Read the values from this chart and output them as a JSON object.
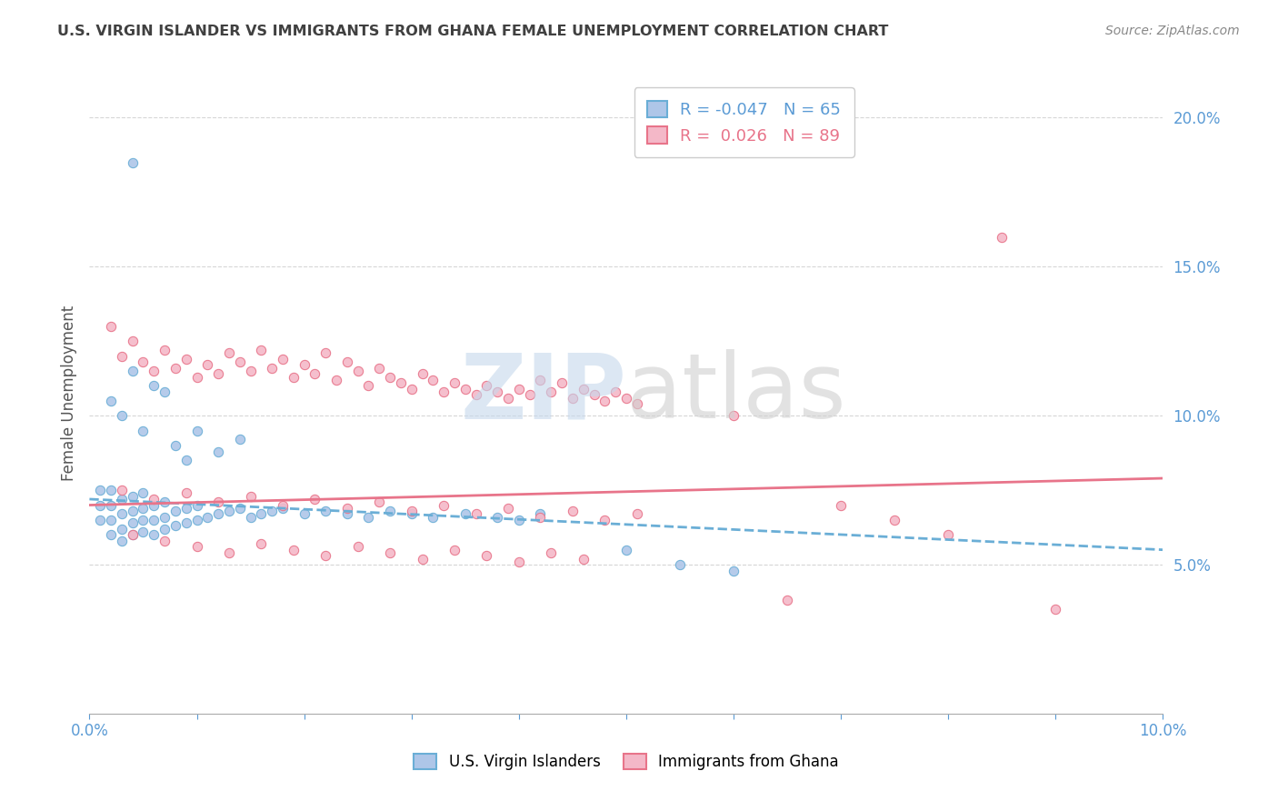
{
  "title": "U.S. VIRGIN ISLANDER VS IMMIGRANTS FROM GHANA FEMALE UNEMPLOYMENT CORRELATION CHART",
  "source": "Source: ZipAtlas.com",
  "ylabel": "Female Unemployment",
  "series1_name": "U.S. Virgin Islanders",
  "series1_color": "#aec6e8",
  "series1_edge_color": "#6aaed6",
  "series1_line_color": "#6aaed6",
  "series2_name": "Immigrants from Ghana",
  "series2_color": "#f4b8c8",
  "series2_edge_color": "#e8748a",
  "series2_line_color": "#e8748a",
  "R1": -0.047,
  "N1": 65,
  "R2": 0.026,
  "N2": 89,
  "bg_color": "#ffffff",
  "grid_color": "#cccccc",
  "tick_color": "#5b9bd5",
  "title_color": "#404040",
  "legend_R1_color": "#5b9bd5",
  "legend_R2_color": "#e8748a",
  "xmin": 0.0,
  "xmax": 0.1,
  "ymin": 0.0,
  "ymax": 0.215,
  "yticks": [
    0.05,
    0.1,
    0.15,
    0.2
  ],
  "scatter1_x": [
    0.001,
    0.001,
    0.001,
    0.002,
    0.002,
    0.002,
    0.002,
    0.003,
    0.003,
    0.003,
    0.003,
    0.004,
    0.004,
    0.004,
    0.004,
    0.005,
    0.005,
    0.005,
    0.005,
    0.006,
    0.006,
    0.006,
    0.007,
    0.007,
    0.007,
    0.008,
    0.008,
    0.009,
    0.009,
    0.01,
    0.01,
    0.011,
    0.012,
    0.013,
    0.014,
    0.015,
    0.016,
    0.017,
    0.018,
    0.02,
    0.022,
    0.024,
    0.026,
    0.028,
    0.03,
    0.032,
    0.035,
    0.038,
    0.04,
    0.042,
    0.002,
    0.003,
    0.004,
    0.005,
    0.006,
    0.007,
    0.008,
    0.009,
    0.01,
    0.012,
    0.014,
    0.004,
    0.05,
    0.055,
    0.06
  ],
  "scatter1_y": [
    0.065,
    0.07,
    0.075,
    0.06,
    0.065,
    0.07,
    0.075,
    0.058,
    0.062,
    0.067,
    0.072,
    0.06,
    0.064,
    0.068,
    0.073,
    0.061,
    0.065,
    0.069,
    0.074,
    0.06,
    0.065,
    0.07,
    0.062,
    0.066,
    0.071,
    0.063,
    0.068,
    0.064,
    0.069,
    0.065,
    0.07,
    0.066,
    0.067,
    0.068,
    0.069,
    0.066,
    0.067,
    0.068,
    0.069,
    0.067,
    0.068,
    0.067,
    0.066,
    0.068,
    0.067,
    0.066,
    0.067,
    0.066,
    0.065,
    0.067,
    0.105,
    0.1,
    0.115,
    0.095,
    0.11,
    0.108,
    0.09,
    0.085,
    0.095,
    0.088,
    0.092,
    0.185,
    0.055,
    0.05,
    0.048
  ],
  "scatter2_x": [
    0.002,
    0.003,
    0.004,
    0.005,
    0.006,
    0.007,
    0.008,
    0.009,
    0.01,
    0.011,
    0.012,
    0.013,
    0.014,
    0.015,
    0.016,
    0.017,
    0.018,
    0.019,
    0.02,
    0.021,
    0.022,
    0.023,
    0.024,
    0.025,
    0.026,
    0.027,
    0.028,
    0.029,
    0.03,
    0.031,
    0.032,
    0.033,
    0.034,
    0.035,
    0.036,
    0.037,
    0.038,
    0.039,
    0.04,
    0.041,
    0.042,
    0.043,
    0.044,
    0.045,
    0.046,
    0.047,
    0.048,
    0.049,
    0.05,
    0.051,
    0.003,
    0.006,
    0.009,
    0.012,
    0.015,
    0.018,
    0.021,
    0.024,
    0.027,
    0.03,
    0.033,
    0.036,
    0.039,
    0.042,
    0.045,
    0.048,
    0.051,
    0.06,
    0.065,
    0.07,
    0.075,
    0.08,
    0.085,
    0.09,
    0.004,
    0.007,
    0.01,
    0.013,
    0.016,
    0.019,
    0.022,
    0.025,
    0.028,
    0.031,
    0.034,
    0.037,
    0.04,
    0.043,
    0.046
  ],
  "scatter2_y": [
    0.13,
    0.12,
    0.125,
    0.118,
    0.115,
    0.122,
    0.116,
    0.119,
    0.113,
    0.117,
    0.114,
    0.121,
    0.118,
    0.115,
    0.122,
    0.116,
    0.119,
    0.113,
    0.117,
    0.114,
    0.121,
    0.112,
    0.118,
    0.115,
    0.11,
    0.116,
    0.113,
    0.111,
    0.109,
    0.114,
    0.112,
    0.108,
    0.111,
    0.109,
    0.107,
    0.11,
    0.108,
    0.106,
    0.109,
    0.107,
    0.112,
    0.108,
    0.111,
    0.106,
    0.109,
    0.107,
    0.105,
    0.108,
    0.106,
    0.104,
    0.075,
    0.072,
    0.074,
    0.071,
    0.073,
    0.07,
    0.072,
    0.069,
    0.071,
    0.068,
    0.07,
    0.067,
    0.069,
    0.066,
    0.068,
    0.065,
    0.067,
    0.1,
    0.038,
    0.07,
    0.065,
    0.06,
    0.16,
    0.035,
    0.06,
    0.058,
    0.056,
    0.054,
    0.057,
    0.055,
    0.053,
    0.056,
    0.054,
    0.052,
    0.055,
    0.053,
    0.051,
    0.054,
    0.052
  ]
}
